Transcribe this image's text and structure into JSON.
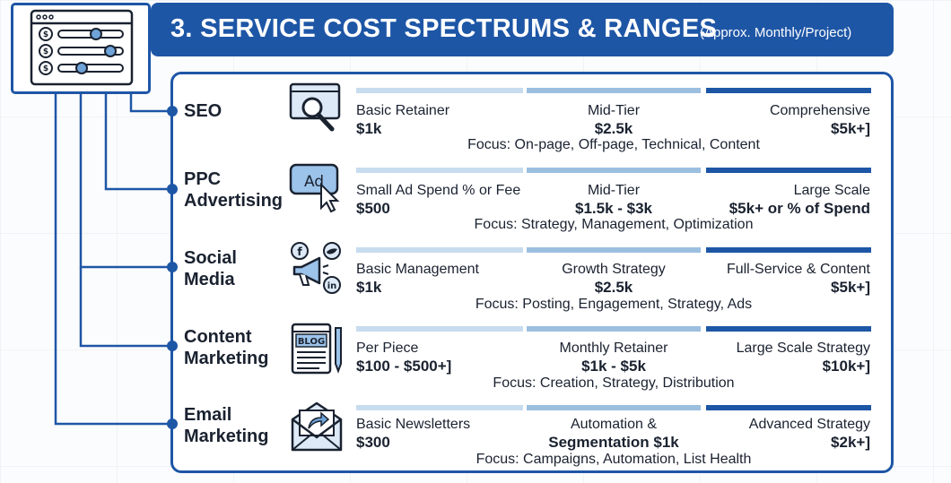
{
  "header": {
    "title": "3. SERVICE COST SPECTRUMS & RANGES",
    "subtitle": "(Approx. Monthly/Project)"
  },
  "colors": {
    "brand": "#1e56a6",
    "light_bar": "#c8dcef",
    "mid_bar": "#9cbfe0",
    "dark_bar": "#1e56a6"
  },
  "services": [
    {
      "name": [
        "SEO"
      ],
      "icon": "magnifier-icon",
      "tiers": [
        {
          "name": "Basic Retainer",
          "price": "$1k"
        },
        {
          "name": "Mid-Tier",
          "price": "$2.5k"
        },
        {
          "name": "Comprehensive",
          "price": "$5k+]"
        }
      ],
      "focus": "Focus: On-page, Off-page, Technical, Content"
    },
    {
      "name": [
        "PPC",
        "Advertising"
      ],
      "icon": "ad-click-icon",
      "icon_text": "Ad",
      "tiers": [
        {
          "name": "Small Ad Spend % or Fee",
          "price": "$500"
        },
        {
          "name": "Mid-Tier",
          "price": "$1.5k - $3k"
        },
        {
          "name": "Large Scale",
          "price": "$5k+ or % of Spend"
        }
      ],
      "focus": "Focus: Strategy, Management, Optimization"
    },
    {
      "name": [
        "Social",
        "Media"
      ],
      "icon": "megaphone-social-icon",
      "tiers": [
        {
          "name": "Basic Management",
          "price": "$1k"
        },
        {
          "name": "Growth Strategy",
          "price": "$2.5k"
        },
        {
          "name": "Full-Service & Content",
          "price": "$5k+]"
        }
      ],
      "focus": "Focus: Posting, Engagement, Strategy, Ads"
    },
    {
      "name": [
        "Content",
        "Marketing"
      ],
      "icon": "blog-document-icon",
      "icon_text": "BLOG",
      "tiers": [
        {
          "name": "Per Piece",
          "price": "$100 - $500+]"
        },
        {
          "name": "Monthly Retainer",
          "price": "$1k - $5k"
        },
        {
          "name": "Large Scale Strategy",
          "price": "$10k+]"
        }
      ],
      "focus": "Focus: Creation, Strategy, Distribution"
    },
    {
      "name": [
        "Email",
        "Marketing"
      ],
      "icon": "envelope-forward-icon",
      "tiers": [
        {
          "name": "Basic Newsletters",
          "price": "$300"
        },
        {
          "name": "Automation &",
          "price": "Segmentation $1k"
        },
        {
          "name": "Advanced Strategy",
          "price": "$2k+]"
        }
      ],
      "focus": "Focus: Campaigns, Automation, List Health"
    }
  ]
}
